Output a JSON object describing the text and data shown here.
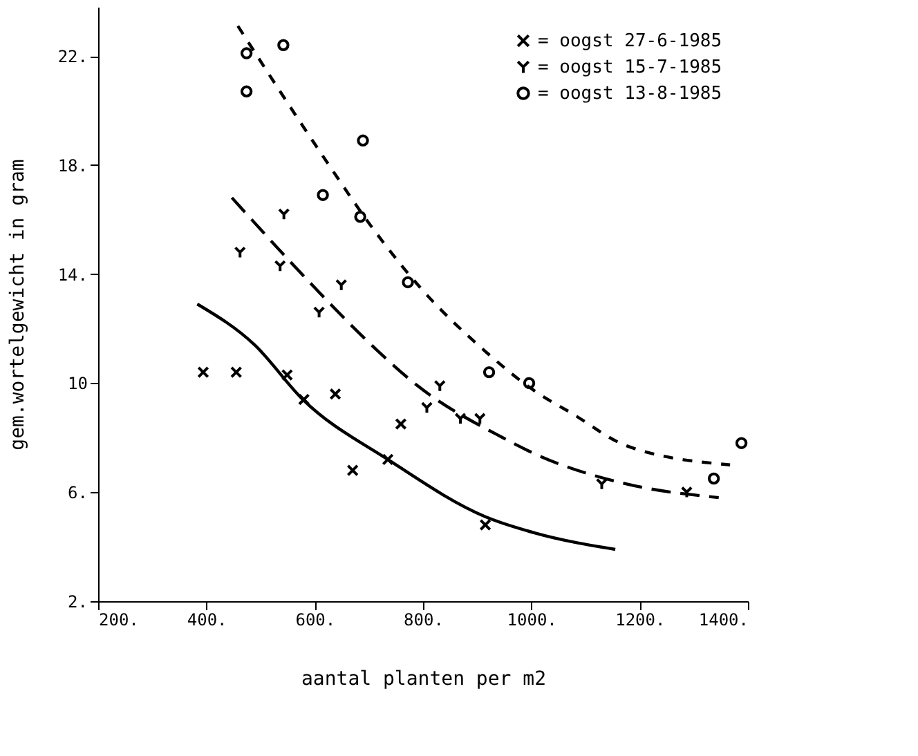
{
  "chart_data": {
    "type": "scatter",
    "xlabel": "aantal planten per m2",
    "ylabel": "gem.wortelgewicht in gram",
    "xlim": [
      200,
      1400
    ],
    "ylim": [
      2,
      23.8
    ],
    "xticks": [
      {
        "value": 200,
        "label": "200."
      },
      {
        "value": 400,
        "label": "400."
      },
      {
        "value": 600,
        "label": "600."
      },
      {
        "value": 800,
        "label": "800."
      },
      {
        "value": 1000,
        "label": "1000."
      },
      {
        "value": 1200,
        "label": "1200."
      },
      {
        "value": 1400,
        "label": "1400."
      }
    ],
    "yticks": [
      {
        "value": 2,
        "label": "2."
      },
      {
        "value": 6,
        "label": "6."
      },
      {
        "value": 10,
        "label": "10"
      },
      {
        "value": 14,
        "label": "14."
      },
      {
        "value": 18,
        "label": "18."
      },
      {
        "value": 22,
        "label": "22."
      }
    ],
    "grid": false,
    "legend": "top right",
    "series": [
      {
        "name": "= oogst 27-6-1985",
        "marker": "cross",
        "color": "#000000",
        "x": [
          394,
          455,
          549,
          580,
          638,
          670,
          735,
          759,
          915
        ],
        "values": [
          10.4,
          10.4,
          10.3,
          9.4,
          9.6,
          6.8,
          7.2,
          8.5,
          4.8
        ]
      },
      {
        "name": "= oogst 15-7-1985",
        "color": "#000000",
        "x": [
          462,
          536,
          543,
          608,
          649,
          807,
          831,
          869,
          905,
          1130,
          1287
        ],
        "values": [
          14.8,
          14.3,
          16.2,
          12.6,
          13.6,
          9.1,
          9.9,
          8.7,
          8.7,
          6.3,
          6.0
        ]
      },
      {
        "name": "= oogst 13-8-1985",
        "marker": "circle",
        "color": "#000000",
        "x": [
          474,
          474,
          542,
          615,
          684,
          689,
          772,
          922,
          996,
          1337,
          1388
        ],
        "values": [
          22.1,
          20.7,
          22.4,
          16.9,
          16.1,
          18.9,
          13.7,
          10.4,
          10.0,
          6.5,
          7.8
        ]
      },
      {
        "type": "line",
        "line_style": "solid",
        "color": "#000000",
        "x": [
          383,
          489,
          578,
          735,
          915,
          1007,
          1155
        ],
        "values": [
          12.9,
          11.4,
          9.4,
          7.2,
          5.1,
          4.5,
          3.9
        ]
      },
      {
        "type": "line",
        "line_style": "dashed",
        "color": "#000000",
        "x": [
          447,
          600,
          689,
          790,
          947,
          1007,
          1176,
          1346
        ],
        "values": [
          16.8,
          13.5,
          11.7,
          9.9,
          8.0,
          7.4,
          6.3,
          5.8
        ]
      },
      {
        "type": "line",
        "line_style": "dotted",
        "color": "#000000",
        "x": [
          458,
          616,
          710,
          795,
          913,
          1007,
          1074,
          1176,
          1367
        ],
        "values": [
          23.1,
          18.3,
          15.6,
          13.5,
          11.2,
          9.7,
          8.9,
          7.7,
          7.0
        ]
      }
    ]
  }
}
